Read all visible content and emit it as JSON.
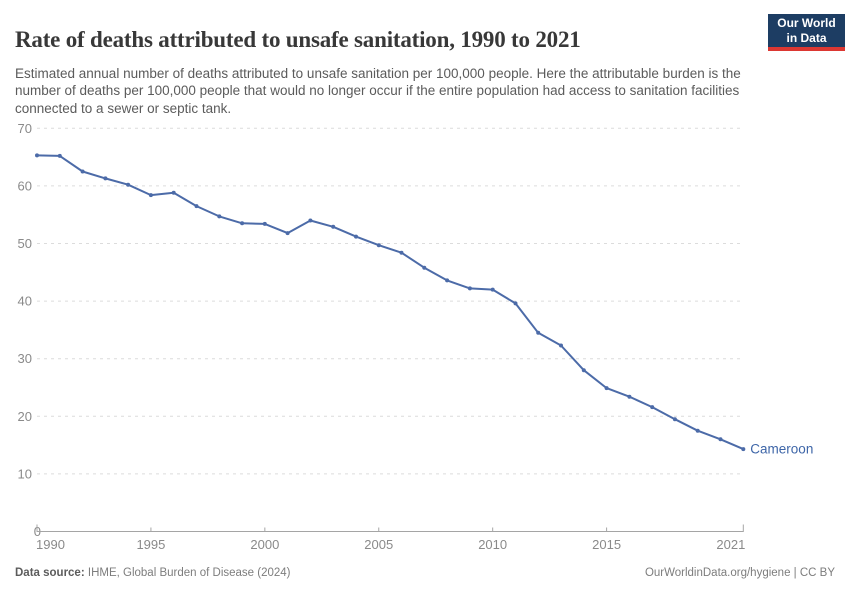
{
  "header": {
    "title": "Rate of deaths attributed to unsafe sanitation, 1990 to 2021",
    "subtitle": "Estimated annual number of deaths attributed to unsafe sanitation per 100,000 people. Here the attributable burden is the number of deaths per 100,000 people that would no longer occur if the entire population had access to sanitation facilities connected to a sewer or septic tank."
  },
  "logo": {
    "line1": "Our World",
    "line2": "in Data"
  },
  "chart_data": {
    "type": "line",
    "title": "Rate of deaths attributed to unsafe sanitation, 1990 to 2021",
    "xlabel": "",
    "ylabel": "",
    "x": [
      1990,
      1991,
      1992,
      1993,
      1994,
      1995,
      1996,
      1997,
      1998,
      1999,
      2000,
      2001,
      2002,
      2003,
      2004,
      2005,
      2006,
      2007,
      2008,
      2009,
      2010,
      2011,
      2012,
      2013,
      2014,
      2015,
      2016,
      2017,
      2018,
      2019,
      2020,
      2021
    ],
    "series": [
      {
        "name": "Cameroon",
        "values": [
          65.3,
          65.2,
          62.5,
          61.3,
          60.2,
          58.4,
          58.8,
          56.5,
          54.7,
          53.5,
          53.4,
          51.8,
          54.0,
          52.9,
          51.2,
          49.7,
          48.4,
          45.8,
          43.6,
          42.2,
          42.0,
          39.6,
          34.5,
          32.3,
          28.0,
          24.9,
          23.4,
          21.6,
          19.5,
          17.5,
          16.0,
          14.3
        ]
      }
    ],
    "ylim": [
      0,
      70
    ],
    "yticks": [
      0,
      10,
      20,
      30,
      40,
      50,
      60,
      70
    ],
    "xticks": [
      1990,
      1995,
      2000,
      2005,
      2010,
      2015,
      2021
    ],
    "grid": "horizontal-dashed",
    "legend": "line-end-label"
  },
  "footer": {
    "source_label": "Data source:",
    "source_value": "IHME, Global Burden of Disease (2024)",
    "license": "OurWorldinData.org/hygiene | CC BY"
  },
  "colors": {
    "line": "#4c6ba8",
    "entity_label": "#3e66a8",
    "logo_bg": "#1d3d63",
    "logo_accent": "#dc3732",
    "grid": "#dcdcdc",
    "axis": "#a5a5a5",
    "tick_label": "#8a8a8a"
  }
}
